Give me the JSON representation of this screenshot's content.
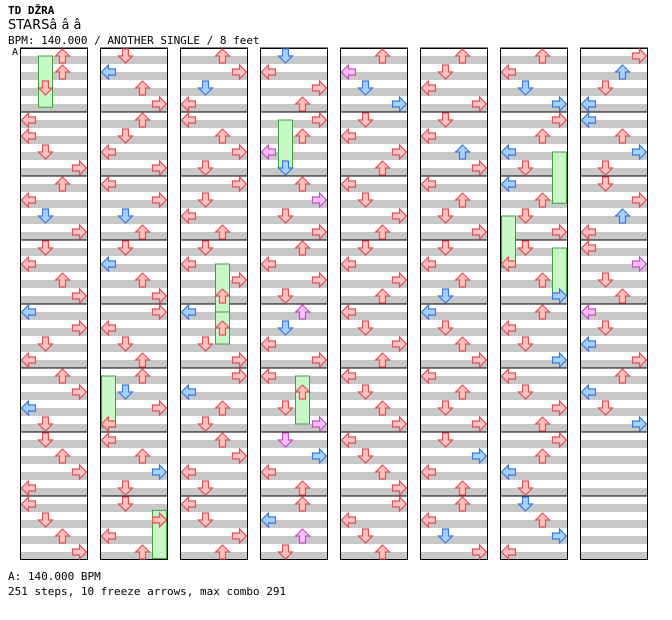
{
  "header": {
    "artist": "TD DŽRA",
    "title": "STARSâ  â  â",
    "info": "BPM: 140.000 / ANOTHER SINGLE / 8 feet",
    "marker": "A"
  },
  "colors": {
    "stripe": "#c8c8c8",
    "red_fill": "#ffc0c0",
    "red_stroke": "#e05050",
    "blue_fill": "#a8d0ff",
    "blue_stroke": "#3c78d8",
    "pink_fill": "#ffc0ff",
    "pink_stroke": "#c050c0",
    "freeze_fill": "#c8f8c8",
    "freeze_stroke": "#40a040"
  },
  "footer": {
    "bpm_line": "A: 140.000 BPM",
    "stats_line": "251 steps, 10 freeze arrows, max combo 291"
  },
  "chart_data": {
    "type": "step-chart",
    "measures": 64,
    "columns": 8,
    "measures_per_column": 8,
    "lanes": [
      "left",
      "down",
      "up",
      "right"
    ],
    "bpm": 140,
    "steps": 251,
    "freeze_arrows": 10,
    "max_combo": 291,
    "notes": [
      [
        0,
        0.0,
        2,
        "r"
      ],
      [
        0,
        0.25,
        2,
        "r"
      ],
      [
        0,
        0.5,
        1,
        "r"
      ],
      [
        1,
        0.0,
        0,
        "r"
      ],
      [
        1,
        0.25,
        0,
        "r"
      ],
      [
        1,
        0.5,
        1,
        "r"
      ],
      [
        1,
        0.75,
        3,
        "r"
      ],
      [
        2,
        0.0,
        2,
        "r"
      ],
      [
        2,
        0.25,
        0,
        "r"
      ],
      [
        2,
        0.5,
        1,
        "b"
      ],
      [
        2,
        0.75,
        3,
        "r"
      ],
      [
        3,
        0.0,
        1,
        "r"
      ],
      [
        3,
        0.25,
        0,
        "r"
      ],
      [
        3,
        0.5,
        2,
        "r"
      ],
      [
        3,
        0.75,
        3,
        "r"
      ],
      [
        4,
        0.0,
        0,
        "b"
      ],
      [
        4,
        0.25,
        3,
        "r"
      ],
      [
        4,
        0.5,
        1,
        "r"
      ],
      [
        4,
        0.75,
        0,
        "r"
      ],
      [
        5,
        0.0,
        2,
        "r"
      ],
      [
        5,
        0.25,
        3,
        "r"
      ],
      [
        5,
        0.5,
        0,
        "b"
      ],
      [
        5,
        0.75,
        1,
        "r"
      ],
      [
        6,
        0.0,
        1,
        "r"
      ],
      [
        6,
        0.25,
        2,
        "r"
      ],
      [
        6,
        0.5,
        3,
        "r"
      ],
      [
        6,
        0.75,
        0,
        "r"
      ],
      [
        7,
        0.0,
        0,
        "r"
      ],
      [
        7,
        0.25,
        1,
        "r"
      ],
      [
        7,
        0.5,
        2,
        "r"
      ],
      [
        7,
        0.75,
        3,
        "r"
      ],
      [
        8,
        0.0,
        1,
        "r"
      ],
      [
        8,
        0.25,
        0,
        "b"
      ],
      [
        8,
        0.5,
        2,
        "r"
      ],
      [
        8,
        0.75,
        3,
        "r"
      ],
      [
        9,
        0.0,
        2,
        "r"
      ],
      [
        9,
        0.25,
        1,
        "r"
      ],
      [
        9,
        0.5,
        0,
        "r"
      ],
      [
        9,
        0.75,
        3,
        "r"
      ],
      [
        10,
        0.0,
        0,
        "r"
      ],
      [
        10,
        0.25,
        3,
        "r"
      ],
      [
        10,
        0.5,
        1,
        "b"
      ],
      [
        10,
        0.75,
        2,
        "r"
      ],
      [
        11,
        0.0,
        1,
        "r"
      ],
      [
        11,
        0.25,
        0,
        "b"
      ],
      [
        11,
        0.5,
        2,
        "r"
      ],
      [
        11,
        0.75,
        3,
        "r"
      ],
      [
        12,
        0.0,
        3,
        "r"
      ],
      [
        12,
        0.25,
        0,
        "r"
      ],
      [
        12,
        0.5,
        1,
        "r"
      ],
      [
        12,
        0.75,
        2,
        "r"
      ],
      [
        13,
        0.0,
        2,
        "r"
      ],
      [
        13,
        0.25,
        1,
        "b"
      ],
      [
        13,
        0.5,
        3,
        "r"
      ],
      [
        13,
        0.75,
        0,
        "r"
      ],
      [
        14,
        0.0,
        0,
        "r"
      ],
      [
        14,
        0.25,
        2,
        "r"
      ],
      [
        14,
        0.5,
        3,
        "b"
      ],
      [
        14,
        0.75,
        1,
        "r"
      ],
      [
        15,
        0.0,
        1,
        "r"
      ],
      [
        15,
        0.25,
        3,
        "r"
      ],
      [
        15,
        0.5,
        0,
        "r"
      ],
      [
        15,
        0.75,
        2,
        "r"
      ],
      [
        16,
        0.0,
        2,
        "r"
      ],
      [
        16,
        0.25,
        3,
        "r"
      ],
      [
        16,
        0.5,
        1,
        "b"
      ],
      [
        16,
        0.75,
        0,
        "r"
      ],
      [
        17,
        0.0,
        0,
        "r"
      ],
      [
        17,
        0.25,
        2,
        "r"
      ],
      [
        17,
        0.5,
        3,
        "r"
      ],
      [
        17,
        0.75,
        1,
        "r"
      ],
      [
        18,
        0.0,
        3,
        "r"
      ],
      [
        18,
        0.25,
        1,
        "r"
      ],
      [
        18,
        0.5,
        0,
        "r"
      ],
      [
        18,
        0.75,
        2,
        "r"
      ],
      [
        19,
        0.0,
        1,
        "r"
      ],
      [
        19,
        0.25,
        0,
        "r"
      ],
      [
        19,
        0.5,
        3,
        "r"
      ],
      [
        19,
        0.75,
        2,
        "r"
      ],
      [
        20,
        0.0,
        0,
        "b"
      ],
      [
        20,
        0.25,
        2,
        "r"
      ],
      [
        20,
        0.5,
        1,
        "r"
      ],
      [
        20,
        0.75,
        3,
        "r"
      ],
      [
        21,
        0.0,
        3,
        "r"
      ],
      [
        21,
        0.25,
        0,
        "b"
      ],
      [
        21,
        0.5,
        2,
        "r"
      ],
      [
        21,
        0.75,
        1,
        "r"
      ],
      [
        22,
        0.0,
        2,
        "r"
      ],
      [
        22,
        0.25,
        3,
        "r"
      ],
      [
        22,
        0.5,
        0,
        "r"
      ],
      [
        22,
        0.75,
        1,
        "r"
      ],
      [
        23,
        0.0,
        0,
        "r"
      ],
      [
        23,
        0.25,
        1,
        "r"
      ],
      [
        23,
        0.5,
        3,
        "r"
      ],
      [
        23,
        0.75,
        2,
        "r"
      ],
      [
        24,
        0.0,
        1,
        "b"
      ],
      [
        24,
        0.25,
        0,
        "r"
      ],
      [
        24,
        0.5,
        3,
        "r"
      ],
      [
        24,
        0.75,
        2,
        "r"
      ],
      [
        25,
        0.0,
        3,
        "r"
      ],
      [
        25,
        0.25,
        2,
        "r"
      ],
      [
        25,
        0.5,
        0,
        "p"
      ],
      [
        25,
        0.75,
        1,
        "b"
      ],
      [
        26,
        0.0,
        2,
        "r"
      ],
      [
        26,
        0.25,
        3,
        "p"
      ],
      [
        26,
        0.5,
        1,
        "r"
      ],
      [
        26,
        0.75,
        3,
        "r"
      ],
      [
        27,
        0.0,
        2,
        "r"
      ],
      [
        27,
        0.25,
        0,
        "r"
      ],
      [
        27,
        0.5,
        3,
        "r"
      ],
      [
        27,
        0.75,
        1,
        "r"
      ],
      [
        28,
        0.0,
        2,
        "p"
      ],
      [
        28,
        0.25,
        1,
        "b"
      ],
      [
        28,
        0.5,
        0,
        "r"
      ],
      [
        28,
        0.75,
        3,
        "r"
      ],
      [
        29,
        0.0,
        0,
        "r"
      ],
      [
        29,
        0.25,
        2,
        "r"
      ],
      [
        29,
        0.5,
        1,
        "r"
      ],
      [
        29,
        0.75,
        3,
        "p"
      ],
      [
        30,
        0.0,
        1,
        "p"
      ],
      [
        30,
        0.25,
        3,
        "b"
      ],
      [
        30,
        0.5,
        0,
        "r"
      ],
      [
        30,
        0.75,
        2,
        "r"
      ],
      [
        31,
        0.0,
        2,
        "r"
      ],
      [
        31,
        0.25,
        0,
        "b"
      ],
      [
        31,
        0.5,
        2,
        "p"
      ],
      [
        31,
        0.75,
        1,
        "r"
      ],
      [
        32,
        0.0,
        2,
        "r"
      ],
      [
        32,
        0.25,
        0,
        "p"
      ],
      [
        32,
        0.5,
        1,
        "b"
      ],
      [
        32,
        0.75,
        3,
        "b"
      ],
      [
        33,
        0.0,
        1,
        "r"
      ],
      [
        33,
        0.25,
        0,
        "r"
      ],
      [
        33,
        0.5,
        3,
        "r"
      ],
      [
        33,
        0.75,
        2,
        "r"
      ],
      [
        34,
        0.0,
        0,
        "r"
      ],
      [
        34,
        0.25,
        1,
        "r"
      ],
      [
        34,
        0.5,
        3,
        "r"
      ],
      [
        34,
        0.75,
        2,
        "r"
      ],
      [
        35,
        0.0,
        1,
        "r"
      ],
      [
        35,
        0.25,
        0,
        "r"
      ],
      [
        35,
        0.5,
        3,
        "r"
      ],
      [
        35,
        0.75,
        2,
        "r"
      ],
      [
        36,
        0.0,
        0,
        "r"
      ],
      [
        36,
        0.25,
        1,
        "r"
      ],
      [
        36,
        0.5,
        3,
        "r"
      ],
      [
        36,
        0.75,
        2,
        "r"
      ],
      [
        37,
        0.0,
        0,
        "r"
      ],
      [
        37,
        0.25,
        1,
        "r"
      ],
      [
        37,
        0.5,
        2,
        "r"
      ],
      [
        37,
        0.75,
        3,
        "r"
      ],
      [
        38,
        0.0,
        0,
        "r"
      ],
      [
        38,
        0.25,
        1,
        "r"
      ],
      [
        38,
        0.5,
        2,
        "r"
      ],
      [
        38,
        0.75,
        3,
        "r"
      ],
      [
        39,
        0.0,
        3,
        "r"
      ],
      [
        39,
        0.25,
        0,
        "r"
      ],
      [
        39,
        0.5,
        1,
        "r"
      ],
      [
        39,
        0.75,
        2,
        "r"
      ],
      [
        40,
        0.0,
        2,
        "r"
      ],
      [
        40,
        0.25,
        1,
        "r"
      ],
      [
        40,
        0.5,
        0,
        "r"
      ],
      [
        40,
        0.75,
        3,
        "r"
      ],
      [
        41,
        0.0,
        1,
        "r"
      ],
      [
        41,
        0.25,
        0,
        "r"
      ],
      [
        41,
        0.5,
        2,
        "b"
      ],
      [
        41,
        0.75,
        3,
        "r"
      ],
      [
        42,
        0.0,
        0,
        "r"
      ],
      [
        42,
        0.25,
        2,
        "r"
      ],
      [
        42,
        0.5,
        1,
        "r"
      ],
      [
        42,
        0.75,
        3,
        "r"
      ],
      [
        43,
        0.0,
        1,
        "r"
      ],
      [
        43,
        0.25,
        0,
        "r"
      ],
      [
        43,
        0.5,
        2,
        "r"
      ],
      [
        43,
        0.75,
        1,
        "b"
      ],
      [
        44,
        0.0,
        0,
        "b"
      ],
      [
        44,
        0.25,
        1,
        "r"
      ],
      [
        44,
        0.5,
        2,
        "r"
      ],
      [
        44,
        0.75,
        3,
        "r"
      ],
      [
        45,
        0.0,
        0,
        "r"
      ],
      [
        45,
        0.25,
        2,
        "r"
      ],
      [
        45,
        0.5,
        1,
        "r"
      ],
      [
        45,
        0.75,
        3,
        "r"
      ],
      [
        46,
        0.0,
        1,
        "r"
      ],
      [
        46,
        0.25,
        3,
        "b"
      ],
      [
        46,
        0.5,
        0,
        "r"
      ],
      [
        46,
        0.75,
        2,
        "r"
      ],
      [
        47,
        0.0,
        2,
        "r"
      ],
      [
        47,
        0.25,
        0,
        "r"
      ],
      [
        47,
        0.5,
        1,
        "b"
      ],
      [
        47,
        0.75,
        3,
        "r"
      ],
      [
        48,
        0.0,
        2,
        "r"
      ],
      [
        48,
        0.25,
        0,
        "r"
      ],
      [
        48,
        0.5,
        1,
        "b"
      ],
      [
        48,
        0.75,
        3,
        "b"
      ],
      [
        49,
        0.0,
        3,
        "r"
      ],
      [
        49,
        0.25,
        2,
        "r"
      ],
      [
        49,
        0.5,
        0,
        "b"
      ],
      [
        49,
        0.75,
        1,
        "r"
      ],
      [
        50,
        0.0,
        0,
        "b"
      ],
      [
        50,
        0.25,
        2,
        "r"
      ],
      [
        50,
        0.5,
        1,
        "r"
      ],
      [
        50,
        0.75,
        3,
        "r"
      ],
      [
        51,
        0.0,
        1,
        "r"
      ],
      [
        51,
        0.25,
        0,
        "r"
      ],
      [
        51,
        0.5,
        2,
        "r"
      ],
      [
        51,
        0.75,
        3,
        "b"
      ],
      [
        52,
        0.0,
        2,
        "r"
      ],
      [
        52,
        0.25,
        0,
        "r"
      ],
      [
        52,
        0.5,
        1,
        "r"
      ],
      [
        52,
        0.75,
        3,
        "b"
      ],
      [
        53,
        0.0,
        0,
        "r"
      ],
      [
        53,
        0.25,
        1,
        "r"
      ],
      [
        53,
        0.5,
        3,
        "r"
      ],
      [
        53,
        0.75,
        2,
        "r"
      ],
      [
        54,
        0.0,
        3,
        "r"
      ],
      [
        54,
        0.25,
        2,
        "r"
      ],
      [
        54,
        0.5,
        0,
        "b"
      ],
      [
        54,
        0.75,
        1,
        "r"
      ],
      [
        55,
        0.0,
        1,
        "b"
      ],
      [
        55,
        0.25,
        2,
        "r"
      ],
      [
        55,
        0.5,
        3,
        "b"
      ],
      [
        55,
        0.75,
        0,
        "r"
      ],
      [
        56,
        0.0,
        3,
        "r"
      ],
      [
        56,
        0.25,
        2,
        "b"
      ],
      [
        56,
        0.5,
        1,
        "r"
      ],
      [
        56,
        0.75,
        0,
        "b"
      ],
      [
        57,
        0.0,
        0,
        "b"
      ],
      [
        57,
        0.25,
        2,
        "r"
      ],
      [
        57,
        0.5,
        3,
        "b"
      ],
      [
        57,
        0.75,
        1,
        "r"
      ],
      [
        58,
        0.0,
        1,
        "r"
      ],
      [
        58,
        0.25,
        3,
        "r"
      ],
      [
        58,
        0.5,
        2,
        "b"
      ],
      [
        58,
        0.75,
        0,
        "r"
      ],
      [
        59,
        0.0,
        0,
        "r"
      ],
      [
        59,
        0.25,
        3,
        "p"
      ],
      [
        59,
        0.5,
        1,
        "r"
      ],
      [
        59,
        0.75,
        2,
        "r"
      ],
      [
        60,
        0.0,
        0,
        "p"
      ],
      [
        60,
        0.25,
        1,
        "r"
      ],
      [
        60,
        0.5,
        0,
        "b"
      ],
      [
        60,
        0.75,
        3,
        "r"
      ],
      [
        61,
        0.0,
        2,
        "r"
      ],
      [
        61,
        0.25,
        0,
        "b"
      ],
      [
        61,
        0.5,
        1,
        "r"
      ],
      [
        61,
        0.75,
        3,
        "b"
      ]
    ],
    "freezes": [
      [
        0,
        0.0,
        1,
        0.8
      ],
      [
        13,
        0.0,
        0,
        0.8
      ],
      [
        15,
        0.1,
        3,
        0.75
      ],
      [
        19,
        0.25,
        2,
        0.75
      ],
      [
        20,
        0.0,
        2,
        0.5
      ],
      [
        25,
        0.0,
        1,
        0.75
      ],
      [
        29,
        0.0,
        2,
        0.75
      ],
      [
        49,
        0.5,
        3,
        0.8
      ],
      [
        50,
        0.5,
        0,
        0.8
      ],
      [
        51,
        0.0,
        3,
        0.75
      ]
    ]
  }
}
